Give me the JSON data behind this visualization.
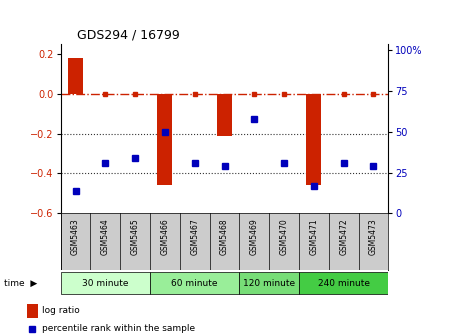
{
  "title": "GDS294 / 16799",
  "samples": [
    "GSM5463",
    "GSM5464",
    "GSM5465",
    "GSM5466",
    "GSM5467",
    "GSM5468",
    "GSM5469",
    "GSM5470",
    "GSM5471",
    "GSM5472",
    "GSM5473"
  ],
  "log_ratio": [
    0.18,
    0.0,
    0.0,
    -0.46,
    0.0,
    -0.21,
    0.0,
    0.0,
    -0.46,
    0.0,
    0.0
  ],
  "percentile": [
    14,
    31,
    34,
    50,
    31,
    29,
    58,
    31,
    17,
    31,
    29
  ],
  "ylim_left": [
    -0.6,
    0.25
  ],
  "ylim_right": [
    0,
    104.17
  ],
  "yticks_left": [
    0.2,
    0.0,
    -0.2,
    -0.4,
    -0.6
  ],
  "yticks_right": [
    100,
    75,
    50,
    25,
    0
  ],
  "bar_color": "#cc2200",
  "dot_color": "#0000bb",
  "dash_color": "#cc2200",
  "time_groups": [
    {
      "label": "30 minute",
      "start": 0,
      "end": 3,
      "color": "#ccffcc"
    },
    {
      "label": "60 minute",
      "start": 3,
      "end": 6,
      "color": "#99ee99"
    },
    {
      "label": "120 minute",
      "start": 6,
      "end": 8,
      "color": "#77dd77"
    },
    {
      "label": "240 minute",
      "start": 8,
      "end": 11,
      "color": "#44cc44"
    }
  ],
  "legend_labels": [
    "log ratio",
    "percentile rank within the sample"
  ],
  "time_label": "time",
  "background_color": "#ffffff",
  "plot_bg": "#ffffff",
  "grid_color": "#333333",
  "xtick_bg": "#cccccc"
}
